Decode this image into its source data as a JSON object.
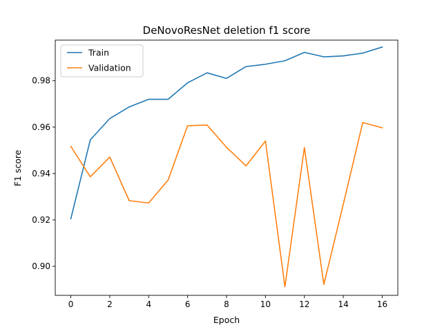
{
  "chart_data": {
    "type": "line",
    "title": "DeNovoResNet deletion f1 score",
    "xlabel": "Epoch",
    "ylabel": "F1 score",
    "xlim": [
      -0.8,
      16.8
    ],
    "ylim": [
      0.8875,
      0.9975
    ],
    "xticks": [
      0,
      2,
      4,
      6,
      8,
      10,
      12,
      14,
      16
    ],
    "yticks": [
      0.9,
      0.92,
      0.94,
      0.96,
      0.98
    ],
    "ytick_format_decimals": 2,
    "grid": false,
    "legend_position": "top-left",
    "x": [
      0,
      1,
      2,
      3,
      4,
      5,
      6,
      7,
      8,
      9,
      10,
      11,
      12,
      13,
      14,
      15,
      16
    ],
    "series": [
      {
        "name": "Train",
        "color": "#1f77b4",
        "values": [
          0.9205,
          0.9545,
          0.9637,
          0.9687,
          0.972,
          0.972,
          0.9791,
          0.9834,
          0.981,
          0.9861,
          0.9871,
          0.9886,
          0.9922,
          0.9903,
          0.9907,
          0.9919,
          0.9945
        ]
      },
      {
        "name": "Validation",
        "color": "#ff7f0e",
        "values": [
          0.9517,
          0.9386,
          0.9471,
          0.9283,
          0.9273,
          0.9372,
          0.9606,
          0.9609,
          0.9513,
          0.9433,
          0.954,
          0.8912,
          0.9512,
          0.8922,
          0.9268,
          0.962,
          0.9597
        ]
      }
    ]
  }
}
